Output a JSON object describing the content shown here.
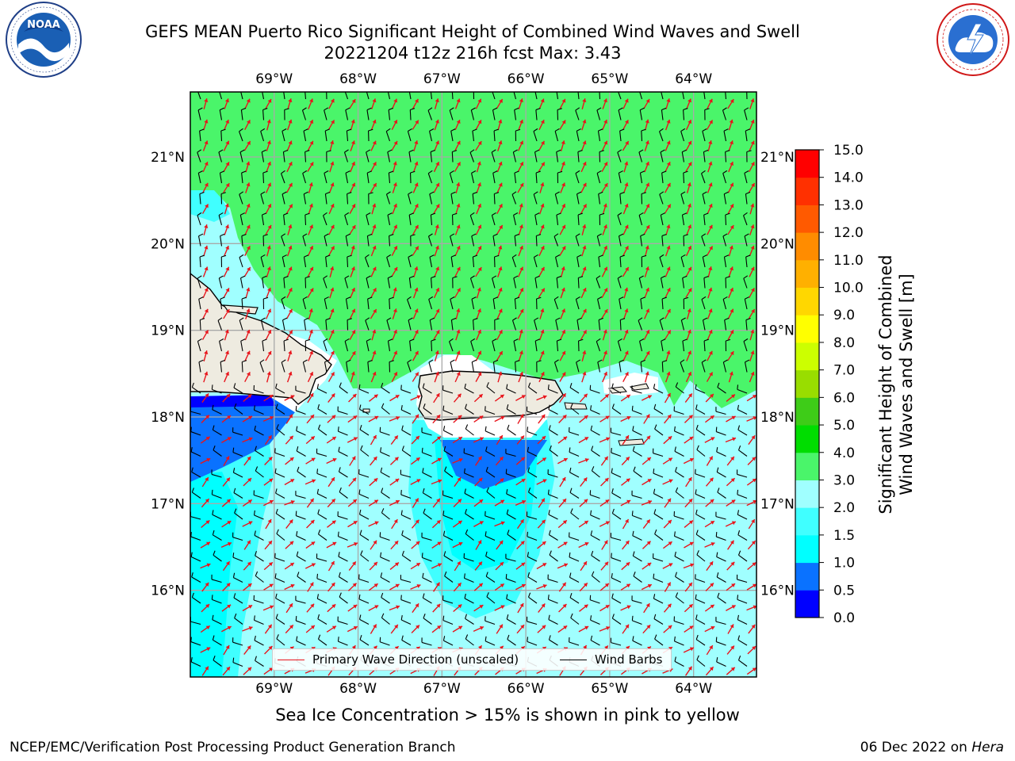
{
  "header": {
    "title_line1": "GEFS MEAN Puerto Rico Significant Height of Combined Wind Waves and Swell",
    "title_line2": "20221204 t12z 216h fcst   Max: 3.43"
  },
  "logos": {
    "left": {
      "name": "noaa-logo",
      "text": "NOAA",
      "ring_text": "NATIONAL OCEANIC AND ATMOSPHERIC ADMINISTRATION · U.S. DEPARTMENT OF COMMERCE"
    },
    "right": {
      "name": "nws-logo",
      "ring_text": "NATIONAL WEATHER SERVICE"
    }
  },
  "map": {
    "lon_labels": [
      "69°W",
      "68°W",
      "67°W",
      "66°W",
      "65°W",
      "64°W"
    ],
    "lon_values": [
      -69,
      -68,
      -67,
      -66,
      -65,
      -64
    ],
    "lat_labels": [
      "21°N",
      "20°N",
      "19°N",
      "18°N",
      "17°N",
      "16°N"
    ],
    "lat_values": [
      21,
      20,
      19,
      18,
      17,
      16
    ],
    "lon_range": [
      -70,
      -63.25
    ],
    "lat_range": [
      15,
      21.75
    ],
    "land_color": "#eeebe0",
    "wave_arrow_color": "#e8141b",
    "barb_color": "#000000"
  },
  "legend": {
    "wave_label": "Primary Wave Direction (unscaled)",
    "barb_label": "Wind Barbs"
  },
  "colorbar": {
    "label": "Significant Height of Combined\nWind Waves and Swell [m]",
    "label_line1": "Significant Height of Combined",
    "label_line2": "Wind Waves and Swell [m]",
    "ticks": [
      "0.0",
      "0.5",
      "1.0",
      "1.5",
      "2.0",
      "3.0",
      "4.0",
      "5.0",
      "6.0",
      "7.0",
      "8.0",
      "9.0",
      "10.0",
      "11.0",
      "12.0",
      "13.0",
      "14.0",
      "15.0"
    ],
    "colors": [
      "#0000ff",
      "#0a72ff",
      "#00ffff",
      "#40ffff",
      "#a0ffff",
      "#4af56a",
      "#00dd00",
      "#3ecc18",
      "#99dd00",
      "#ccff00",
      "#ffff00",
      "#ffd700",
      "#ffb000",
      "#ff8c00",
      "#ff5a00",
      "#ff3000",
      "#ff0000"
    ]
  },
  "notes": {
    "sea_ice": "Sea Ice Concentration > 15% is shown in pink to yellow",
    "credit_left": "NCEP/EMC/Verification Post Processing Product Generation Branch",
    "credit_right_date": "06 Dec 2022 on ",
    "credit_right_host": "Hera"
  }
}
